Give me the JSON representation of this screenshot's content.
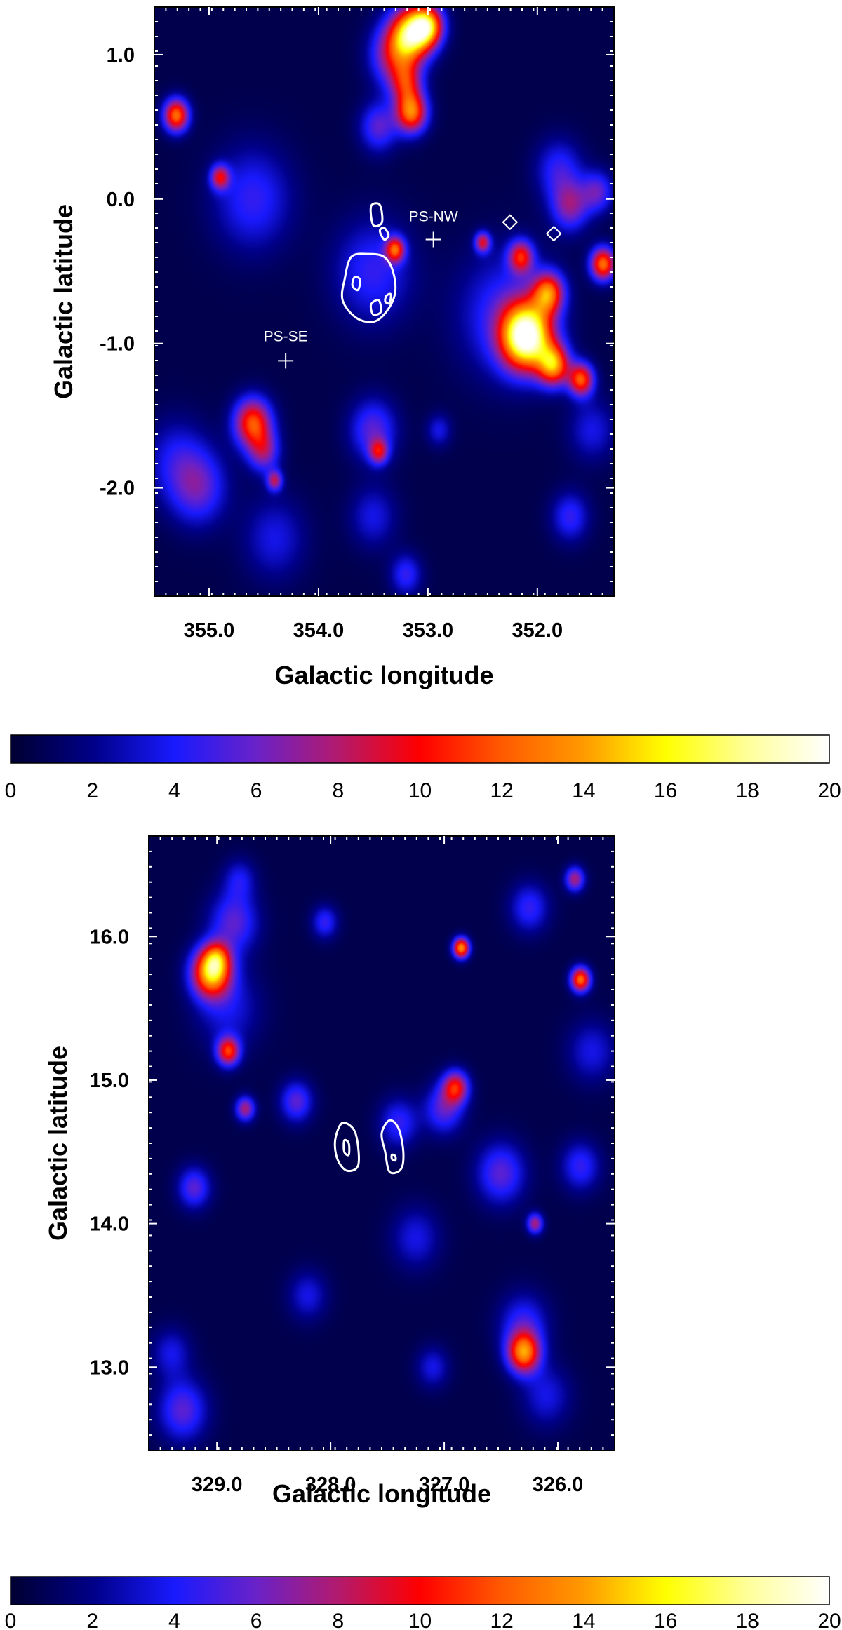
{
  "colors": {
    "background": "#000033",
    "contour": "#ffffff",
    "marker": "#ffffff"
  },
  "colormap": [
    [
      0,
      "#000033"
    ],
    [
      0.1,
      "#000088"
    ],
    [
      0.2,
      "#1a1aff"
    ],
    [
      0.3,
      "#6a22c8"
    ],
    [
      0.4,
      "#b31a6e"
    ],
    [
      0.5,
      "#ff0000"
    ],
    [
      0.6,
      "#ff5a00"
    ],
    [
      0.7,
      "#ff9a00"
    ],
    [
      0.8,
      "#ffff00"
    ],
    [
      0.9,
      "#ffff9a"
    ],
    [
      1.0,
      "#ffffff"
    ]
  ],
  "chart_data": [
    {
      "type": "heatmap",
      "xlabel": "Galactic longitude",
      "ylabel": "Galactic latitude",
      "xlim": [
        355.5,
        351.3
      ],
      "ylim": [
        -2.75,
        1.33
      ],
      "xticks": [
        355.0,
        354.0,
        353.0,
        352.0
      ],
      "xtick_labels": [
        "355.0",
        "354.0",
        "353.0",
        "352.0"
      ],
      "yticks": [
        1.0,
        0.0,
        -1.0,
        -2.0
      ],
      "ytick_labels": [
        "1.0",
        "0.0",
        "-1.0",
        "-2.0"
      ],
      "value_range": [
        0,
        20
      ],
      "blobs": [
        [
          353.15,
          1.15,
          0.13,
          14
        ],
        [
          353.0,
          1.2,
          0.1,
          12
        ],
        [
          353.3,
          1.0,
          0.15,
          8
        ],
        [
          353.15,
          0.6,
          0.1,
          12
        ],
        [
          353.2,
          0.8,
          0.1,
          7
        ],
        [
          353.45,
          0.5,
          0.12,
          5
        ],
        [
          355.3,
          0.58,
          0.08,
          12
        ],
        [
          354.9,
          0.15,
          0.06,
          8
        ],
        [
          354.6,
          0.0,
          0.25,
          4
        ],
        [
          353.3,
          -0.35,
          0.06,
          10
        ],
        [
          353.5,
          -0.5,
          0.25,
          4
        ],
        [
          352.1,
          -0.95,
          0.16,
          19
        ],
        [
          351.85,
          -1.15,
          0.1,
          12
        ],
        [
          351.6,
          -1.25,
          0.08,
          11
        ],
        [
          352.15,
          -0.4,
          0.08,
          9
        ],
        [
          351.9,
          -0.65,
          0.1,
          11
        ],
        [
          351.4,
          -0.45,
          0.08,
          12
        ],
        [
          352.5,
          -0.3,
          0.05,
          8
        ],
        [
          352.3,
          -0.8,
          0.3,
          4
        ],
        [
          351.7,
          -0.05,
          0.12,
          6
        ],
        [
          351.45,
          0.05,
          0.1,
          5
        ],
        [
          351.8,
          0.2,
          0.15,
          4
        ],
        [
          354.6,
          -1.55,
          0.12,
          11
        ],
        [
          354.5,
          -1.75,
          0.1,
          6
        ],
        [
          354.4,
          -1.95,
          0.05,
          7
        ],
        [
          353.5,
          -1.6,
          0.15,
          5
        ],
        [
          353.45,
          -1.75,
          0.06,
          7
        ],
        [
          355.1,
          -2.0,
          0.18,
          5
        ],
        [
          355.3,
          -1.8,
          0.2,
          3
        ],
        [
          354.4,
          -2.35,
          0.2,
          3
        ],
        [
          353.5,
          -2.2,
          0.15,
          3
        ],
        [
          351.7,
          -2.2,
          0.12,
          4
        ],
        [
          351.5,
          -1.6,
          0.15,
          3
        ],
        [
          353.2,
          -2.6,
          0.1,
          4
        ],
        [
          352.9,
          -1.6,
          0.08,
          3
        ]
      ],
      "contours": [
        [
          [
            353.76,
            -0.55
          ],
          [
            353.7,
            -0.4
          ],
          [
            353.55,
            -0.38
          ],
          [
            353.4,
            -0.4
          ],
          [
            353.32,
            -0.5
          ],
          [
            353.3,
            -0.65
          ],
          [
            353.38,
            -0.78
          ],
          [
            353.5,
            -0.85
          ],
          [
            353.66,
            -0.82
          ],
          [
            353.78,
            -0.7
          ]
        ],
        [
          [
            353.67,
            -0.54
          ],
          [
            353.62,
            -0.56
          ],
          [
            353.64,
            -0.63
          ],
          [
            353.69,
            -0.6
          ]
        ],
        [
          [
            353.52,
            -0.73
          ],
          [
            353.45,
            -0.7
          ],
          [
            353.43,
            -0.78
          ],
          [
            353.5,
            -0.8
          ]
        ],
        [
          [
            353.38,
            -0.67
          ],
          [
            353.34,
            -0.66
          ],
          [
            353.35,
            -0.72
          ],
          [
            353.39,
            -0.71
          ]
        ],
        [
          [
            353.52,
            -0.05
          ],
          [
            353.44,
            -0.04
          ],
          [
            353.42,
            -0.16
          ],
          [
            353.5,
            -0.18
          ]
        ],
        [
          [
            353.44,
            -0.22
          ],
          [
            353.4,
            -0.2
          ],
          [
            353.36,
            -0.25
          ],
          [
            353.4,
            -0.28
          ]
        ]
      ],
      "markers": [
        {
          "type": "plus",
          "x": 354.3,
          "y": -1.12
        },
        {
          "type": "plus",
          "x": 352.95,
          "y": -0.28
        },
        {
          "type": "diamond",
          "x": 352.25,
          "y": -0.16
        },
        {
          "type": "diamond",
          "x": 351.85,
          "y": -0.24
        }
      ],
      "annotations": [
        {
          "text": "PS-SE",
          "x": 354.3,
          "y": -0.95
        },
        {
          "text": "PS-NW",
          "x": 352.95,
          "y": -0.12
        }
      ]
    },
    {
      "type": "heatmap",
      "xlabel": "Galactic longitude",
      "ylabel": "Galactic latitude",
      "xlim": [
        329.6,
        325.5
      ],
      "ylim": [
        12.42,
        16.7
      ],
      "xticks": [
        329.0,
        328.0,
        327.0,
        326.0
      ],
      "xtick_labels": [
        "329.0",
        "328.0",
        "327.0",
        "326.0"
      ],
      "yticks": [
        16.0,
        15.0,
        14.0,
        13.0
      ],
      "ytick_labels": [
        "16.0",
        "15.0",
        "14.0",
        "13.0"
      ],
      "value_range": [
        0,
        20
      ],
      "blobs": [
        [
          329.05,
          15.75,
          0.12,
          14
        ],
        [
          329.0,
          15.85,
          0.08,
          6
        ],
        [
          328.9,
          15.2,
          0.07,
          10
        ],
        [
          328.85,
          16.1,
          0.15,
          5
        ],
        [
          328.75,
          14.8,
          0.06,
          7
        ],
        [
          328.9,
          15.5,
          0.2,
          3
        ],
        [
          326.85,
          15.92,
          0.05,
          13
        ],
        [
          325.8,
          15.7,
          0.06,
          12
        ],
        [
          325.85,
          16.4,
          0.06,
          7
        ],
        [
          326.9,
          14.95,
          0.08,
          9
        ],
        [
          327.0,
          14.8,
          0.12,
          5
        ],
        [
          326.5,
          14.35,
          0.15,
          5
        ],
        [
          326.2,
          14.0,
          0.05,
          7
        ],
        [
          325.8,
          14.4,
          0.12,
          4
        ],
        [
          326.3,
          13.1,
          0.1,
          12
        ],
        [
          326.3,
          13.3,
          0.15,
          4
        ],
        [
          329.2,
          14.25,
          0.1,
          5
        ],
        [
          328.3,
          14.85,
          0.1,
          5
        ],
        [
          328.05,
          16.1,
          0.08,
          4
        ],
        [
          327.4,
          14.7,
          0.12,
          4
        ],
        [
          327.25,
          13.9,
          0.15,
          3
        ],
        [
          329.3,
          12.7,
          0.15,
          5
        ],
        [
          329.4,
          13.1,
          0.12,
          3
        ],
        [
          326.1,
          12.8,
          0.15,
          3
        ],
        [
          325.7,
          15.2,
          0.15,
          3
        ],
        [
          326.25,
          16.2,
          0.12,
          4
        ],
        [
          328.2,
          13.5,
          0.12,
          3
        ],
        [
          327.1,
          13.0,
          0.1,
          3
        ],
        [
          328.8,
          16.4,
          0.1,
          3
        ]
      ],
      "contours": [
        [
          [
            327.9,
            14.7
          ],
          [
            327.8,
            14.66
          ],
          [
            327.76,
            14.55
          ],
          [
            327.76,
            14.4
          ],
          [
            327.86,
            14.37
          ],
          [
            327.94,
            14.45
          ],
          [
            327.96,
            14.58
          ]
        ],
        [
          [
            327.88,
            14.58
          ],
          [
            327.84,
            14.56
          ],
          [
            327.84,
            14.48
          ],
          [
            327.88,
            14.5
          ]
        ],
        [
          [
            327.48,
            14.72
          ],
          [
            327.4,
            14.66
          ],
          [
            327.36,
            14.5
          ],
          [
            327.38,
            14.38
          ],
          [
            327.48,
            14.36
          ],
          [
            327.52,
            14.5
          ],
          [
            327.55,
            14.63
          ]
        ],
        [
          [
            327.46,
            14.48
          ],
          [
            327.43,
            14.47
          ],
          [
            327.43,
            14.44
          ],
          [
            327.46,
            14.45
          ]
        ]
      ],
      "markers": [],
      "annotations": []
    }
  ],
  "colorbars": [
    {
      "min": 0,
      "max": 20,
      "tick_labels": [
        "0",
        "2",
        "4",
        "6",
        "8",
        "10",
        "12",
        "14",
        "16",
        "18",
        "20"
      ]
    },
    {
      "min": 0,
      "max": 20,
      "tick_labels": [
        "0",
        "2",
        "4",
        "6",
        "8",
        "10",
        "12",
        "14",
        "16",
        "18",
        "20"
      ]
    }
  ]
}
